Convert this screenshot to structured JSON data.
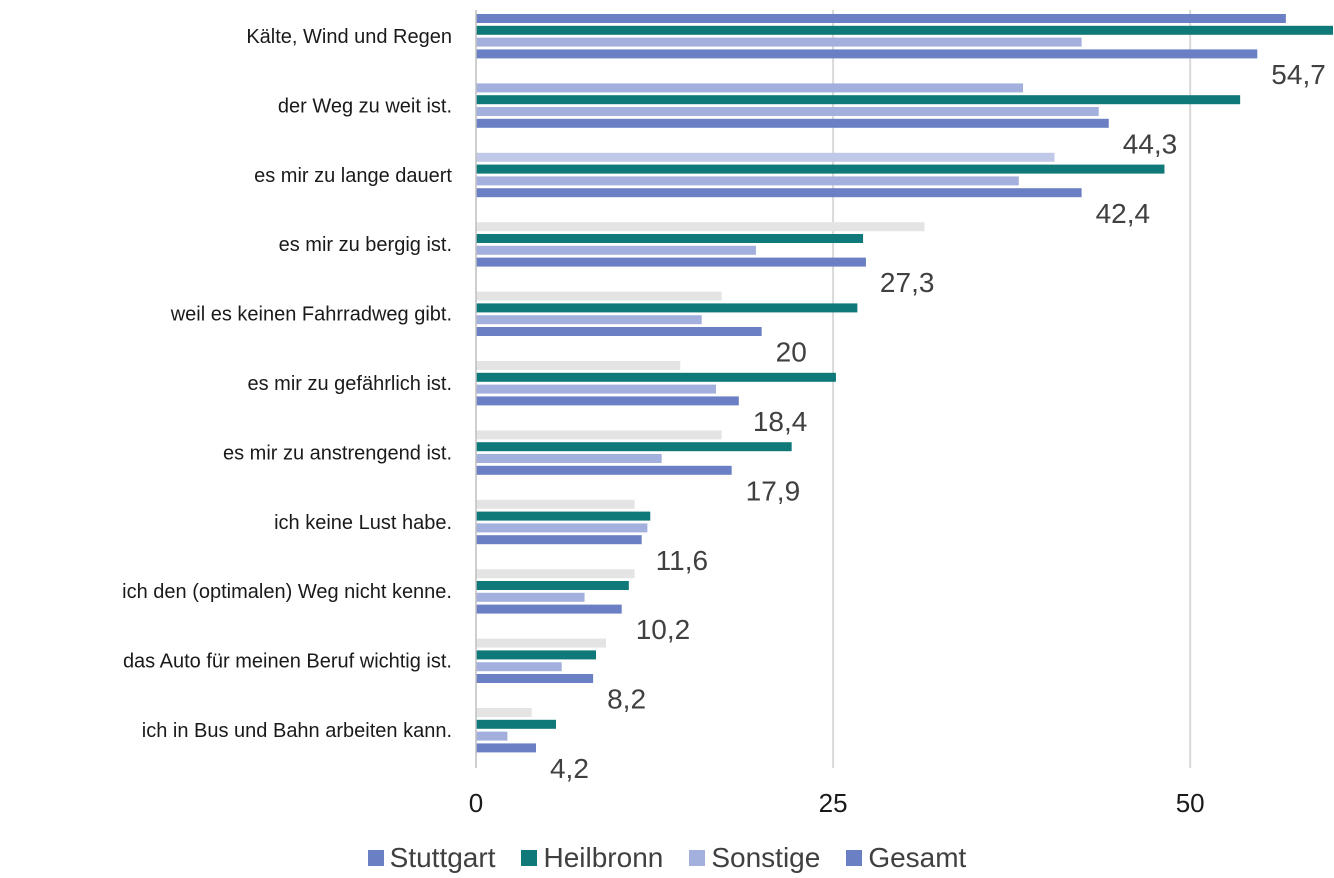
{
  "chart_data": {
    "type": "bar",
    "orientation": "horizontal",
    "categories": [
      "Kälte, Wind und Regen",
      "der Weg zu weit ist.",
      "es mir zu lange dauert",
      "es mir zu bergig ist.",
      "weil es keinen Fahrradweg gibt.",
      "es mir zu gefährlich ist.",
      "es mir zu anstrengend ist.",
      "ich keine Lust habe.",
      "ich den (optimalen) Weg nicht kenne.",
      "das Auto für meinen Beruf wichtig ist.",
      "ich in Bus und Bahn arbeiten kann."
    ],
    "series": [
      {
        "name": "Stuttgart",
        "color": "#6b80c4",
        "values": [
          56.7,
          38.3,
          40.5,
          31.4,
          17.2,
          14.3,
          17.2,
          11.1,
          11.1,
          9.1,
          3.9
        ]
      },
      {
        "name": "Heilbronn",
        "color": "#0f7878",
        "values": [
          60.0,
          53.5,
          48.2,
          27.1,
          26.7,
          25.2,
          22.1,
          12.2,
          10.7,
          8.4,
          5.6
        ]
      },
      {
        "name": "Sonstige",
        "color": "#a3b0dd",
        "values": [
          42.4,
          43.6,
          38.0,
          19.6,
          15.8,
          16.8,
          13.0,
          12.0,
          7.6,
          6.0,
          2.2
        ]
      },
      {
        "name": "Gesamt",
        "color": "#6b80c4",
        "values": [
          54.7,
          44.3,
          42.4,
          27.3,
          20,
          18.4,
          17.9,
          11.6,
          10.2,
          8.2,
          4.2
        ]
      }
    ],
    "first_bar_colors": [
      "#6b80c4",
      "#a3b0dd",
      "#c1c9e8",
      "#e4e4e4",
      "#e4e4e4",
      "#e4e4e4",
      "#e4e4e4",
      "#e4e4e4",
      "#e4e4e4",
      "#e4e4e4",
      "#e4e4e4"
    ],
    "data_labels": [
      "54,7",
      "44,3",
      "42,4",
      "27,3",
      "20",
      "18,4",
      "17,9",
      "11,6",
      "10,2",
      "8,2",
      "4,2"
    ],
    "x_ticks": [
      0,
      25,
      50
    ],
    "x_tick_labels": [
      "0",
      "25",
      "50"
    ],
    "xlim": [
      0,
      60
    ],
    "grid": true,
    "legend_position": "bottom",
    "title": "",
    "xlabel": "",
    "ylabel": ""
  },
  "legend": [
    {
      "label": "Stuttgart",
      "color": "#6b80c4"
    },
    {
      "label": "Heilbronn",
      "color": "#0f7878"
    },
    {
      "label": "Sonstige",
      "color": "#a3b0dd"
    },
    {
      "label": "Gesamt",
      "color": "#6b80c4"
    }
  ]
}
